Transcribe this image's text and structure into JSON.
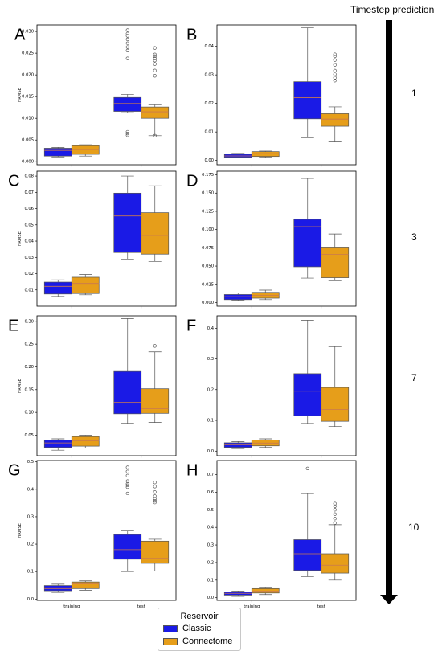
{
  "header": {
    "title": "Timestep prediction"
  },
  "timesteps": [
    "1",
    "3",
    "7",
    "10"
  ],
  "legend": {
    "title": "Reservoir",
    "items": [
      {
        "label": "Classic",
        "color": "#1a1ae6"
      },
      {
        "label": "Connectome",
        "color": "#e69e1a"
      }
    ]
  },
  "colors": {
    "classic": "#1a1ae6",
    "connectome": "#e69e1a",
    "median": "#c87850",
    "whisker": "#555555"
  },
  "chart_data": [
    {
      "panel": "A",
      "type": "box",
      "ylabel": "nRMSE",
      "ylim": [
        -0.0007,
        0.0315
      ],
      "yticks": [
        "0.000",
        "0.005",
        "0.010",
        "0.015",
        "0.020",
        "0.025",
        "0.030"
      ],
      "categories": [],
      "series": [
        {
          "name": "Classic",
          "boxes": [
            {
              "q1": 0.0013,
              "median": 0.0026,
              "q3": 0.0031,
              "whislo": 0.0011,
              "whishi": 0.0033,
              "fliers": []
            },
            {
              "q1": 0.0116,
              "median": 0.0134,
              "q3": 0.0148,
              "whislo": 0.0113,
              "whishi": 0.0155,
              "fliers": [
                0.0303,
                0.0295,
                0.029,
                0.0282,
                0.0273,
                0.0264,
                0.0256,
                0.0238,
                0.0069,
                0.0065,
                0.0061
              ]
            }
          ]
        },
        {
          "name": "Connectome",
          "boxes": [
            {
              "q1": 0.0017,
              "median": 0.0028,
              "q3": 0.0037,
              "whislo": 0.0013,
              "whishi": 0.0039,
              "fliers": []
            },
            {
              "q1": 0.01,
              "median": 0.0115,
              "q3": 0.0126,
              "whislo": 0.006,
              "whishi": 0.0131,
              "fliers": [
                0.0262,
                0.0247,
                0.0243,
                0.0238,
                0.0233,
                0.0225,
                0.021,
                0.0198,
                0.006
              ]
            }
          ]
        }
      ]
    },
    {
      "panel": "B",
      "type": "box",
      "ylabel": "",
      "ylim": [
        -0.0015,
        0.0475
      ],
      "yticks": [
        "0.00",
        "0.01",
        "0.02",
        "0.03",
        "0.04"
      ],
      "categories": [],
      "series": [
        {
          "name": "Classic",
          "boxes": [
            {
              "q1": 0.0011,
              "median": 0.0016,
              "q3": 0.0022,
              "whislo": 0.0009,
              "whishi": 0.0025,
              "fliers": []
            },
            {
              "q1": 0.0146,
              "median": 0.022,
              "q3": 0.0276,
              "whislo": 0.008,
              "whishi": 0.0465,
              "fliers": []
            }
          ]
        },
        {
          "name": "Connectome",
          "boxes": [
            {
              "q1": 0.0014,
              "median": 0.0024,
              "q3": 0.0031,
              "whislo": 0.0011,
              "whishi": 0.0033,
              "fliers": []
            },
            {
              "q1": 0.012,
              "median": 0.0145,
              "q3": 0.0164,
              "whislo": 0.0065,
              "whishi": 0.0188,
              "fliers": [
                0.0372,
                0.0365,
                0.0352,
                0.0335,
                0.0315,
                0.0302,
                0.029,
                0.028
              ]
            }
          ]
        }
      ]
    },
    {
      "panel": "C",
      "type": "box",
      "ylabel": "nRMSE",
      "ylim": [
        0.0,
        0.083
      ],
      "yticks": [
        "0.01",
        "0.02",
        "0.03",
        "0.04",
        "0.05",
        "0.06",
        "0.07",
        "0.08"
      ],
      "categories": [],
      "series": [
        {
          "name": "Classic",
          "boxes": [
            {
              "q1": 0.0075,
              "median": 0.0122,
              "q3": 0.0148,
              "whislo": 0.006,
              "whishi": 0.0162,
              "fliers": []
            },
            {
              "q1": 0.033,
              "median": 0.0555,
              "q3": 0.0695,
              "whislo": 0.029,
              "whishi": 0.08,
              "fliers": []
            }
          ]
        },
        {
          "name": "Connectome",
          "boxes": [
            {
              "q1": 0.0078,
              "median": 0.014,
              "q3": 0.0178,
              "whislo": 0.007,
              "whishi": 0.0195,
              "fliers": []
            },
            {
              "q1": 0.032,
              "median": 0.0435,
              "q3": 0.0575,
              "whislo": 0.0275,
              "whishi": 0.074,
              "fliers": []
            }
          ]
        }
      ]
    },
    {
      "panel": "D",
      "type": "box",
      "ylabel": "",
      "ylim": [
        -0.005,
        0.18
      ],
      "yticks": [
        "0.000",
        "0.025",
        "0.050",
        "0.075",
        "0.100",
        "0.125",
        "0.150",
        "0.175"
      ],
      "categories": [],
      "series": [
        {
          "name": "Classic",
          "boxes": [
            {
              "q1": 0.004,
              "median": 0.008,
              "q3": 0.011,
              "whislo": 0.003,
              "whishi": 0.013,
              "fliers": []
            },
            {
              "q1": 0.049,
              "median": 0.104,
              "q3": 0.114,
              "whislo": 0.0335,
              "whishi": 0.17,
              "fliers": []
            }
          ]
        },
        {
          "name": "Connectome",
          "boxes": [
            {
              "q1": 0.006,
              "median": 0.01,
              "q3": 0.014,
              "whislo": 0.004,
              "whishi": 0.017,
              "fliers": []
            },
            {
              "q1": 0.034,
              "median": 0.066,
              "q3": 0.076,
              "whislo": 0.03,
              "whishi": 0.094,
              "fliers": []
            }
          ]
        }
      ]
    },
    {
      "panel": "E",
      "type": "box",
      "ylabel": "nRMSE",
      "ylim": [
        0.005,
        0.312
      ],
      "yticks": [
        "0.05",
        "0.10",
        "0.15",
        "0.20",
        "0.25",
        "0.30"
      ],
      "categories": [],
      "series": [
        {
          "name": "Classic",
          "boxes": [
            {
              "q1": 0.023,
              "median": 0.033,
              "q3": 0.039,
              "whislo": 0.017,
              "whishi": 0.042,
              "fliers": []
            },
            {
              "q1": 0.097,
              "median": 0.122,
              "q3": 0.19,
              "whislo": 0.076,
              "whishi": 0.306,
              "fliers": []
            }
          ]
        },
        {
          "name": "Connectome",
          "boxes": [
            {
              "q1": 0.026,
              "median": 0.038,
              "q3": 0.047,
              "whislo": 0.022,
              "whishi": 0.05,
              "fliers": []
            },
            {
              "q1": 0.098,
              "median": 0.108,
              "q3": 0.152,
              "whislo": 0.078,
              "whishi": 0.233,
              "fliers": [
                0.246
              ]
            }
          ]
        }
      ]
    },
    {
      "panel": "F",
      "type": "box",
      "ylabel": "",
      "ylim": [
        -0.015,
        0.44
      ],
      "yticks": [
        "0.0",
        "0.1",
        "0.2",
        "0.3",
        "0.4"
      ],
      "categories": [],
      "series": [
        {
          "name": "Classic",
          "boxes": [
            {
              "q1": 0.012,
              "median": 0.02,
              "q3": 0.027,
              "whislo": 0.008,
              "whishi": 0.031,
              "fliers": []
            },
            {
              "q1": 0.115,
              "median": 0.195,
              "q3": 0.252,
              "whislo": 0.09,
              "whishi": 0.426,
              "fliers": []
            }
          ]
        },
        {
          "name": "Connectome",
          "boxes": [
            {
              "q1": 0.017,
              "median": 0.026,
              "q3": 0.036,
              "whislo": 0.012,
              "whishi": 0.04,
              "fliers": []
            },
            {
              "q1": 0.097,
              "median": 0.135,
              "q3": 0.207,
              "whislo": 0.08,
              "whishi": 0.34,
              "fliers": []
            }
          ]
        }
      ]
    },
    {
      "panel": "G",
      "type": "box",
      "ylabel": "nRMSE",
      "ylim": [
        -0.005,
        0.505
      ],
      "yticks": [
        "0.0",
        "0.1",
        "0.2",
        "0.3",
        "0.4",
        "0.5"
      ],
      "categories": [
        "training",
        "test"
      ],
      "series": [
        {
          "name": "Classic",
          "boxes": [
            {
              "q1": 0.03,
              "median": 0.038,
              "q3": 0.049,
              "whislo": 0.024,
              "whishi": 0.054,
              "fliers": []
            },
            {
              "q1": 0.145,
              "median": 0.18,
              "q3": 0.235,
              "whislo": 0.1,
              "whishi": 0.248,
              "fliers": [
                0.48,
                0.465,
                0.45,
                0.43,
                0.42,
                0.415,
                0.408,
                0.385
              ]
            }
          ]
        },
        {
          "name": "Connectome",
          "boxes": [
            {
              "q1": 0.038,
              "median": 0.055,
              "q3": 0.062,
              "whislo": 0.032,
              "whishi": 0.066,
              "fliers": []
            },
            {
              "q1": 0.13,
              "median": 0.148,
              "q3": 0.211,
              "whislo": 0.102,
              "whishi": 0.218,
              "fliers": [
                0.425,
                0.41,
                0.39,
                0.375,
                0.365,
                0.358,
                0.352
              ]
            }
          ]
        }
      ]
    },
    {
      "panel": "H",
      "type": "box",
      "ylabel": "",
      "ylim": [
        -0.015,
        0.78
      ],
      "yticks": [
        "0.0",
        "0.1",
        "0.2",
        "0.3",
        "0.4",
        "0.5",
        "0.6",
        "0.7"
      ],
      "categories": [
        "training",
        "test"
      ],
      "series": [
        {
          "name": "Classic",
          "boxes": [
            {
              "q1": 0.015,
              "median": 0.025,
              "q3": 0.032,
              "whislo": 0.008,
              "whishi": 0.038,
              "fliers": []
            },
            {
              "q1": 0.155,
              "median": 0.25,
              "q3": 0.33,
              "whislo": 0.12,
              "whishi": 0.592,
              "fliers": [
                0.735
              ]
            }
          ]
        },
        {
          "name": "Connectome",
          "boxes": [
            {
              "q1": 0.027,
              "median": 0.038,
              "q3": 0.052,
              "whislo": 0.018,
              "whishi": 0.056,
              "fliers": []
            },
            {
              "q1": 0.14,
              "median": 0.185,
              "q3": 0.25,
              "whislo": 0.1,
              "whishi": 0.415,
              "fliers": [
                0.535,
                0.52,
                0.5,
                0.475,
                0.45,
                0.425
              ]
            }
          ]
        }
      ]
    }
  ]
}
